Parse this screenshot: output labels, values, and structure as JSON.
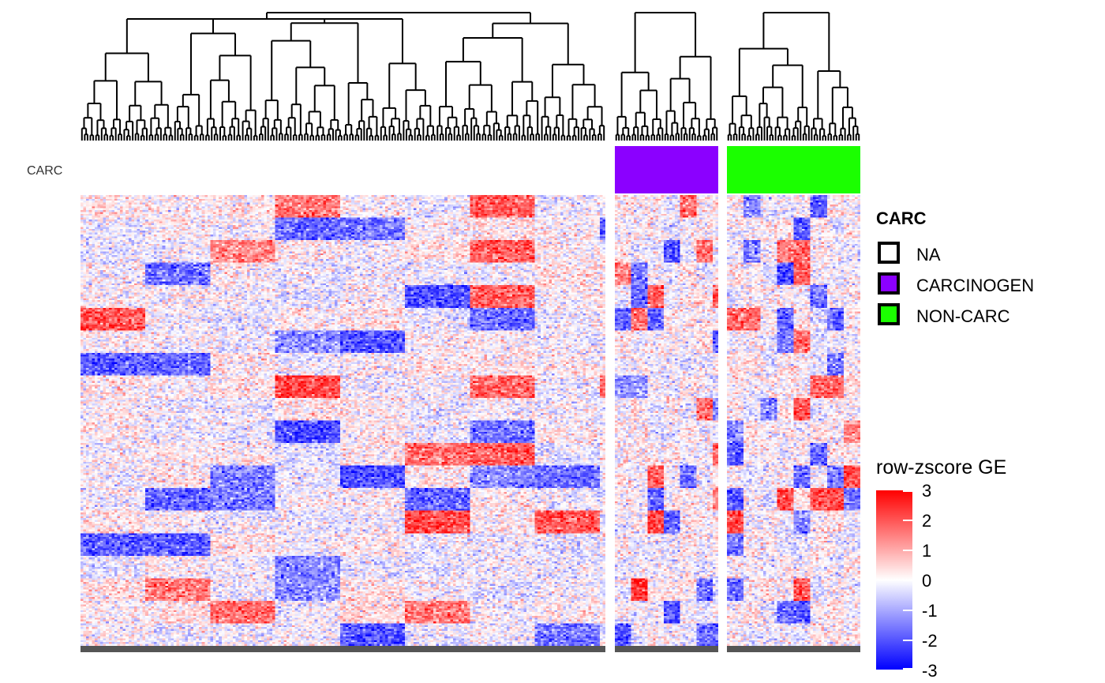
{
  "chart_data": {
    "type": "heatmap",
    "annotation": {
      "row_label": "CARC",
      "groups": [
        {
          "name": "NA",
          "color": "#ffffff"
        },
        {
          "name": "CARCINOGEN",
          "color": "#8b00ff"
        },
        {
          "name": "NON-CARC",
          "color": "#1bff00"
        }
      ]
    },
    "legend": {
      "title": "CARC",
      "position": "right",
      "items": [
        {
          "label": "NA",
          "color": "#ffffff"
        },
        {
          "label": "CARCINOGEN",
          "color": "#8b00ff"
        },
        {
          "label": "NON-CARC",
          "color": "#1bff00"
        }
      ]
    },
    "colorbar": {
      "title": "row-zscore GE",
      "min": -3,
      "max": 3,
      "colors": [
        "#0000ff",
        "#ffffff",
        "#ff0000"
      ],
      "ticks": [
        "3",
        "2",
        "1",
        "0",
        "-1",
        "-2",
        "-3"
      ]
    },
    "panels": [
      {
        "group": "NA",
        "n_columns": 186
      },
      {
        "group": "CARCINOGEN",
        "n_columns": 38
      },
      {
        "group": "NON-CARC",
        "n_columns": 48
      }
    ],
    "n_rows": 240,
    "dendrogram": "top"
  }
}
